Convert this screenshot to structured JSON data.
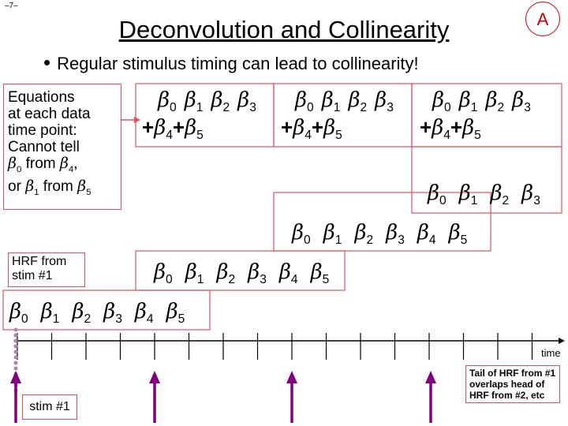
{
  "page_number": "–7–",
  "title": "Deconvolution and Collinearity",
  "badge": "A",
  "bullet": "Regular stimulus timing can lead to collinearity!",
  "equations_note": {
    "line1": "Equations",
    "line2": "at each data",
    "line3": "time point:",
    "line4": "Cannot tell",
    "line5_a": "0",
    "line5_b": " from ",
    "line5_c": "4",
    "line5_d": ",",
    "line6_a": "or ",
    "line6_b": "1",
    "line6_c": " from ",
    "line6_d": "5"
  },
  "beta_symbol": "β",
  "hrf_label": {
    "line1": "HRF from",
    "line2": "stim #1"
  },
  "time_label": "time",
  "stim_label": "stim #1",
  "tail_note": "Tail of HRF from #1 overlaps head of HRF from #2, etc",
  "colors": {
    "box_border": "#e05060",
    "arrow": "#800080",
    "title": "#000000",
    "badge": "#cc0000"
  }
}
